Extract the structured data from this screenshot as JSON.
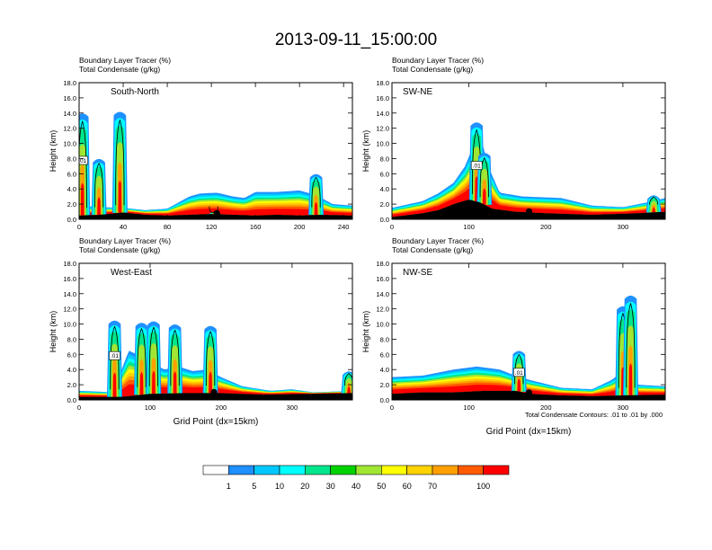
{
  "title": "2013-09-11_15:00:00",
  "panel_subtitle_1": "Boundary Layer Tracer   (%)",
  "panel_subtitle_2": "Total Condensate   (g/kg)",
  "footnote": "Total Condensate Contours: .01 to .01 by .000",
  "colors": {
    "levels": [
      "#ffffff",
      "#1e90ff",
      "#00c8ff",
      "#00ffff",
      "#00e68c",
      "#00d200",
      "#a0e632",
      "#ffff00",
      "#ffd200",
      "#ffa000",
      "#ff5a00",
      "#ff0000"
    ],
    "ground": "#000000",
    "contour": "#000000"
  },
  "colorbar": {
    "tick_labels": [
      "1",
      "5",
      "10",
      "20",
      "30",
      "40",
      "50",
      "60",
      "70",
      "100"
    ]
  },
  "chart_data": [
    {
      "type": "heatmap",
      "label": "South-North",
      "ylabel": "Height (km)",
      "xlabel": "",
      "xlim": [
        0,
        248
      ],
      "ylim": [
        0,
        18
      ],
      "xticks": [
        "0",
        "40",
        "80",
        "120",
        "160",
        "200",
        "240"
      ],
      "yticks": [
        "0.0",
        "2.0",
        "4.0",
        "6.0",
        "8.0",
        "10.0",
        "12.0",
        "14.0",
        "16.0",
        "18.0"
      ],
      "contour_label": ".01",
      "marker_x": 125,
      "terrain": [
        [
          0,
          0.5
        ],
        [
          20,
          0.6
        ],
        [
          40,
          0.9
        ],
        [
          60,
          0.6
        ],
        [
          80,
          0.5
        ],
        [
          100,
          0.6
        ],
        [
          120,
          0.7
        ],
        [
          140,
          0.6
        ],
        [
          160,
          0.5
        ],
        [
          180,
          0.6
        ],
        [
          200,
          0.5
        ],
        [
          220,
          0.6
        ],
        [
          248,
          0.5
        ]
      ],
      "layer": [
        [
          0,
          1.8
        ],
        [
          20,
          1.6
        ],
        [
          40,
          1.5
        ],
        [
          60,
          1.2
        ],
        [
          80,
          1.4
        ],
        [
          90,
          2.2
        ],
        [
          100,
          3.0
        ],
        [
          110,
          3.4
        ],
        [
          125,
          3.5
        ],
        [
          140,
          3.0
        ],
        [
          150,
          2.8
        ],
        [
          160,
          3.6
        ],
        [
          180,
          3.6
        ],
        [
          200,
          3.8
        ],
        [
          215,
          3.2
        ],
        [
          230,
          2.0
        ],
        [
          248,
          1.8
        ]
      ],
      "towers": [
        [
          3,
          14.0
        ],
        [
          18,
          8.0
        ],
        [
          37,
          14.2
        ],
        [
          122,
          1.0
        ],
        [
          215,
          6.0
        ]
      ]
    },
    {
      "type": "heatmap",
      "label": "SW-NE",
      "ylabel": "Height (km)",
      "xlabel": "",
      "xlim": [
        0,
        355
      ],
      "ylim": [
        0,
        18
      ],
      "xticks": [
        "0",
        "100",
        "200",
        "300"
      ],
      "yticks": [
        "0.0",
        "2.0",
        "4.0",
        "6.0",
        "8.0",
        "10.0",
        "12.0",
        "14.0",
        "16.0",
        "18.0"
      ],
      "contour_label": ".01",
      "marker_x": 178,
      "terrain": [
        [
          0,
          0.3
        ],
        [
          40,
          0.8
        ],
        [
          60,
          1.2
        ],
        [
          80,
          2.0
        ],
        [
          100,
          2.6
        ],
        [
          115,
          2.2
        ],
        [
          130,
          1.4
        ],
        [
          160,
          1.0
        ],
        [
          200,
          0.8
        ],
        [
          260,
          0.6
        ],
        [
          320,
          0.8
        ],
        [
          355,
          1.0
        ]
      ],
      "layer": [
        [
          0,
          1.5
        ],
        [
          40,
          2.4
        ],
        [
          60,
          3.4
        ],
        [
          80,
          4.8
        ],
        [
          95,
          7.0
        ],
        [
          105,
          9.5
        ],
        [
          115,
          11.0
        ],
        [
          125,
          7.0
        ],
        [
          140,
          3.5
        ],
        [
          170,
          3.0
        ],
        [
          220,
          2.8
        ],
        [
          260,
          1.8
        ],
        [
          300,
          1.6
        ],
        [
          330,
          2.2
        ],
        [
          355,
          2.8
        ]
      ],
      "towers": [
        [
          110,
          12.8
        ],
        [
          120,
          8.8
        ],
        [
          340,
          3.2
        ]
      ]
    },
    {
      "type": "heatmap",
      "label": "West-East",
      "ylabel": "Height (km)",
      "xlabel": "Grid Point (dx=15km)",
      "xlim": [
        0,
        385
      ],
      "ylim": [
        0,
        18
      ],
      "xticks": [
        "0",
        "100",
        "200",
        "300"
      ],
      "yticks": [
        "0.0",
        "2.0",
        "4.0",
        "6.0",
        "8.0",
        "10.0",
        "12.0",
        "14.0",
        "16.0",
        "18.0"
      ],
      "contour_label": ".01",
      "marker_x": 190,
      "terrain": [
        [
          0,
          0.4
        ],
        [
          60,
          0.4
        ],
        [
          100,
          0.8
        ],
        [
          150,
          0.9
        ],
        [
          200,
          0.9
        ],
        [
          260,
          0.7
        ],
        [
          320,
          0.8
        ],
        [
          385,
          0.9
        ]
      ],
      "layer": [
        [
          0,
          1.2
        ],
        [
          50,
          1.0
        ],
        [
          60,
          4.0
        ],
        [
          70,
          6.5
        ],
        [
          90,
          5.6
        ],
        [
          120,
          4.0
        ],
        [
          140,
          4.4
        ],
        [
          160,
          3.8
        ],
        [
          180,
          4.0
        ],
        [
          200,
          3.0
        ],
        [
          230,
          1.8
        ],
        [
          270,
          1.2
        ],
        [
          300,
          1.4
        ],
        [
          330,
          1.0
        ],
        [
          385,
          1.2
        ]
      ],
      "towers": [
        [
          50,
          10.5
        ],
        [
          88,
          10.2
        ],
        [
          105,
          10.4
        ],
        [
          135,
          10.0
        ],
        [
          185,
          9.8
        ],
        [
          380,
          3.8
        ]
      ]
    },
    {
      "type": "heatmap",
      "label": "NW-SE",
      "ylabel": "Height (km)",
      "xlabel": "Grid Point (dx=15km)",
      "xlim": [
        0,
        355
      ],
      "ylim": [
        0,
        18
      ],
      "xticks": [
        "0",
        "100",
        "200",
        "300"
      ],
      "yticks": [
        "0.0",
        "2.0",
        "4.0",
        "6.0",
        "8.0",
        "10.0",
        "12.0",
        "14.0",
        "16.0",
        "18.0"
      ],
      "contour_label": ".01",
      "marker_x": 178,
      "terrain": [
        [
          0,
          0.8
        ],
        [
          40,
          1.0
        ],
        [
          80,
          1.0
        ],
        [
          120,
          1.2
        ],
        [
          160,
          1.2
        ],
        [
          180,
          0.8
        ],
        [
          220,
          0.6
        ],
        [
          260,
          0.5
        ],
        [
          300,
          0.6
        ],
        [
          355,
          0.7
        ]
      ],
      "layer": [
        [
          0,
          3.0
        ],
        [
          40,
          3.2
        ],
        [
          80,
          4.0
        ],
        [
          110,
          4.4
        ],
        [
          140,
          4.0
        ],
        [
          160,
          3.2
        ],
        [
          180,
          2.6
        ],
        [
          220,
          1.6
        ],
        [
          260,
          1.4
        ],
        [
          285,
          2.6
        ],
        [
          300,
          3.8
        ],
        [
          320,
          2.0
        ],
        [
          355,
          1.8
        ]
      ],
      "towers": [
        [
          165,
          6.5
        ],
        [
          300,
          12.4
        ],
        [
          310,
          13.8
        ]
      ]
    }
  ]
}
